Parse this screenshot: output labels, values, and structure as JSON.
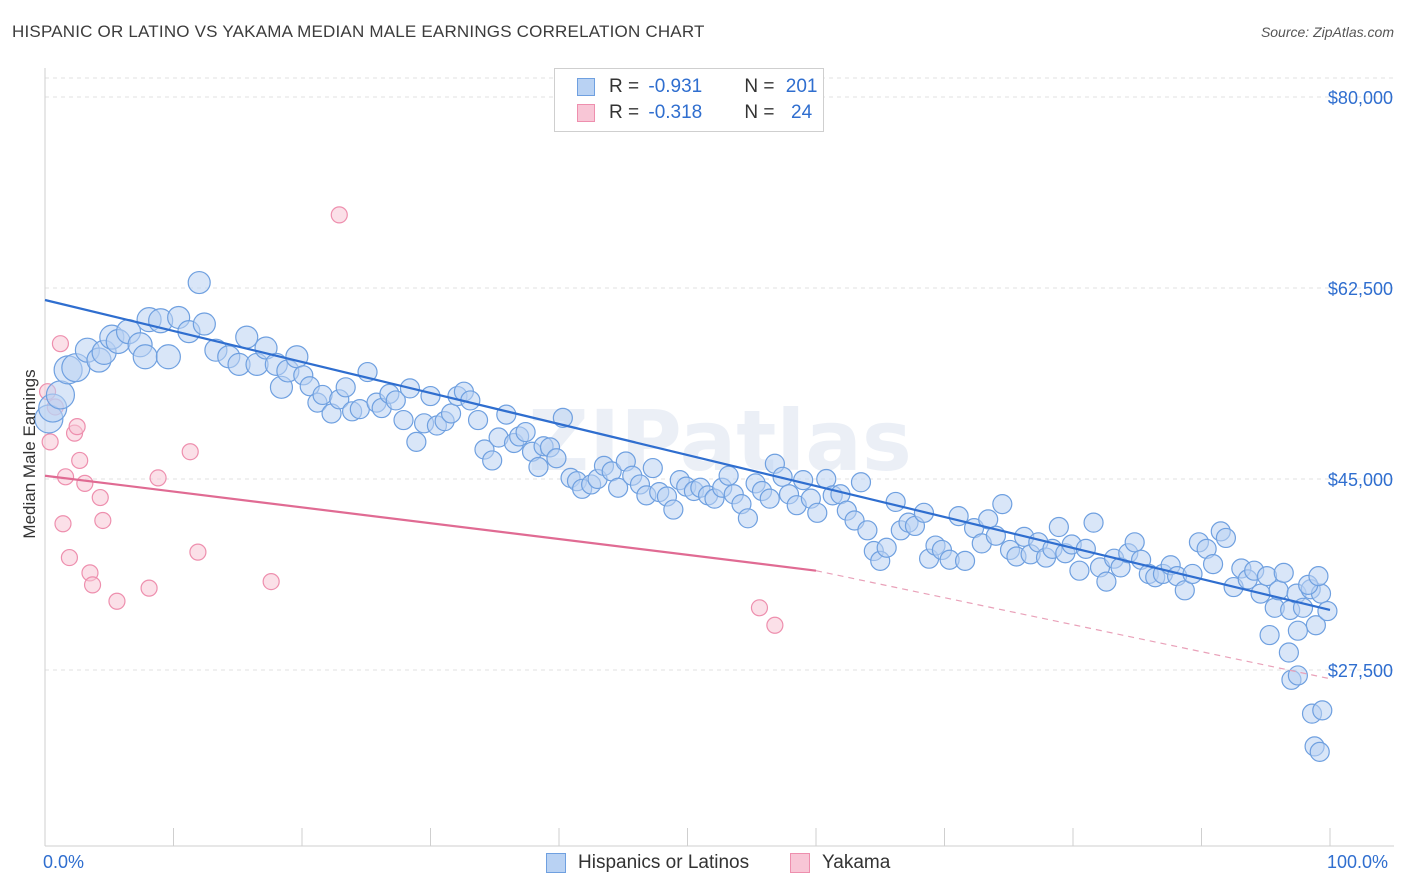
{
  "title": "HISPANIC OR LATINO VS YAKAMA MEDIAN MALE EARNINGS CORRELATION CHART",
  "source": "Source: ZipAtlas.com",
  "watermark": "ZIPatlas",
  "legend": {
    "rows": [
      {
        "r_label": "R = ",
        "r_value": "-0.931",
        "n_label": "N = ",
        "n_value": "201",
        "color": "#6fa0e0",
        "fill": "#b9d2f3"
      },
      {
        "r_label": "R = ",
        "r_value": "-0.318",
        "n_label": "N = ",
        "n_value": " 24",
        "color": "#ee8fae",
        "fill": "#f8c6d6"
      }
    ]
  },
  "bottom_legend": [
    {
      "label": "Hispanics or Latinos",
      "color": "#6fa0e0",
      "fill": "#b9d2f3"
    },
    {
      "label": "Yakama",
      "color": "#ee8fae",
      "fill": "#f8c6d6"
    }
  ],
  "axes": {
    "x_min_label": "0.0%",
    "x_max_label": "100.0%",
    "y_title": "Median Male Earnings",
    "y_ticks": [
      "$80,000",
      "$62,500",
      "$45,000",
      "$27,500"
    ]
  },
  "chart_data": {
    "type": "scatter",
    "title": "HISPANIC OR LATINO VS YAKAMA MEDIAN MALE EARNINGS CORRELATION CHART",
    "xlabel": "",
    "ylabel": "Median Male Earnings",
    "xlim": [
      0,
      100
    ],
    "ylim": [
      12500,
      83000
    ],
    "y_ticks": [
      27500,
      45000,
      62500,
      80000
    ],
    "x_ticks_labeled": [
      0,
      100
    ],
    "grid": true,
    "legend_position": "top-center",
    "series": [
      {
        "name": "Hispanics or Latinos",
        "color": "#5b8fd9",
        "trend": {
          "x0": 0,
          "y0": 61400,
          "x1": 100,
          "y1": 33000
        },
        "points": [
          [
            0.3,
            50500
          ],
          [
            0.6,
            51500
          ],
          [
            1.2,
            52700
          ],
          [
            1.8,
            55000
          ],
          [
            2.4,
            55200
          ],
          [
            3.3,
            56800
          ],
          [
            4.2,
            55900
          ],
          [
            4.6,
            56600
          ],
          [
            5.2,
            58000
          ],
          [
            5.7,
            57600
          ],
          [
            6.5,
            58500
          ],
          [
            7.4,
            57300
          ],
          [
            7.8,
            56200
          ],
          [
            8.1,
            59600
          ],
          [
            9.0,
            59500
          ],
          [
            9.6,
            56200
          ],
          [
            10.4,
            59800
          ],
          [
            11.2,
            58500
          ],
          [
            12.4,
            59200
          ],
          [
            13.3,
            56800
          ],
          [
            14.3,
            56200
          ],
          [
            15.1,
            55500
          ],
          [
            15.7,
            58000
          ],
          [
            16.5,
            55500
          ],
          [
            17.2,
            57000
          ],
          [
            18.0,
            55500
          ],
          [
            18.4,
            53400
          ],
          [
            18.9,
            54900
          ],
          [
            19.6,
            56200
          ],
          [
            20.1,
            54500
          ],
          [
            20.6,
            53500
          ],
          [
            21.2,
            52000
          ],
          [
            21.6,
            52700
          ],
          [
            22.3,
            51000
          ],
          [
            22.9,
            52300
          ],
          [
            23.4,
            53400
          ],
          [
            23.9,
            51200
          ],
          [
            24.5,
            51400
          ],
          [
            25.1,
            54800
          ],
          [
            25.8,
            52000
          ],
          [
            26.2,
            51500
          ],
          [
            26.8,
            52800
          ],
          [
            27.3,
            52200
          ],
          [
            27.9,
            50400
          ],
          [
            28.4,
            53300
          ],
          [
            28.9,
            48400
          ],
          [
            29.5,
            50100
          ],
          [
            30.0,
            52600
          ],
          [
            30.5,
            49900
          ],
          [
            31.1,
            50300
          ],
          [
            31.6,
            51000
          ],
          [
            32.1,
            52600
          ],
          [
            32.6,
            53000
          ],
          [
            33.1,
            52200
          ],
          [
            33.7,
            50400
          ],
          [
            34.2,
            47700
          ],
          [
            34.8,
            46700
          ],
          [
            35.3,
            48800
          ],
          [
            35.9,
            50900
          ],
          [
            36.5,
            48300
          ],
          [
            36.9,
            48900
          ],
          [
            37.4,
            49300
          ],
          [
            37.9,
            47500
          ],
          [
            38.4,
            46100
          ],
          [
            38.8,
            48000
          ],
          [
            39.3,
            47900
          ],
          [
            39.8,
            46900
          ],
          [
            40.3,
            50600
          ],
          [
            40.9,
            45100
          ],
          [
            41.4,
            44800
          ],
          [
            41.8,
            44100
          ],
          [
            42.5,
            44500
          ],
          [
            43.0,
            45000
          ],
          [
            43.5,
            46200
          ],
          [
            44.1,
            45700
          ],
          [
            44.6,
            44200
          ],
          [
            45.2,
            46600
          ],
          [
            45.7,
            45300
          ],
          [
            46.3,
            44500
          ],
          [
            46.8,
            43500
          ],
          [
            47.3,
            46000
          ],
          [
            47.8,
            43800
          ],
          [
            48.4,
            43400
          ],
          [
            48.9,
            42200
          ],
          [
            49.4,
            44900
          ],
          [
            49.9,
            44300
          ],
          [
            50.5,
            43900
          ],
          [
            51.0,
            44200
          ],
          [
            51.6,
            43500
          ],
          [
            52.1,
            43200
          ],
          [
            52.7,
            44200
          ],
          [
            53.2,
            45300
          ],
          [
            53.6,
            43600
          ],
          [
            54.2,
            42700
          ],
          [
            54.7,
            41400
          ],
          [
            55.3,
            44600
          ],
          [
            55.8,
            43900
          ],
          [
            56.4,
            43200
          ],
          [
            56.8,
            46400
          ],
          [
            57.4,
            45200
          ],
          [
            57.9,
            43600
          ],
          [
            58.5,
            42600
          ],
          [
            59.0,
            44900
          ],
          [
            59.6,
            43200
          ],
          [
            60.1,
            41900
          ],
          [
            60.8,
            45000
          ],
          [
            61.3,
            43500
          ],
          [
            61.9,
            43600
          ],
          [
            62.4,
            42100
          ],
          [
            63.0,
            41200
          ],
          [
            63.5,
            44700
          ],
          [
            64.0,
            40300
          ],
          [
            64.5,
            38400
          ],
          [
            65.0,
            37500
          ],
          [
            65.5,
            38700
          ],
          [
            66.2,
            42900
          ],
          [
            66.6,
            40300
          ],
          [
            67.2,
            41000
          ],
          [
            67.7,
            40700
          ],
          [
            68.4,
            41900
          ],
          [
            68.8,
            37700
          ],
          [
            69.3,
            38900
          ],
          [
            69.8,
            38500
          ],
          [
            70.4,
            37600
          ],
          [
            71.1,
            41600
          ],
          [
            71.6,
            37500
          ],
          [
            72.3,
            40500
          ],
          [
            72.9,
            39100
          ],
          [
            73.4,
            41300
          ],
          [
            74.0,
            39800
          ],
          [
            74.5,
            42700
          ],
          [
            75.1,
            38500
          ],
          [
            75.6,
            37900
          ],
          [
            76.2,
            39700
          ],
          [
            76.7,
            38100
          ],
          [
            77.3,
            39200
          ],
          [
            77.9,
            37800
          ],
          [
            78.4,
            38600
          ],
          [
            78.9,
            40600
          ],
          [
            79.4,
            38200
          ],
          [
            79.9,
            39000
          ],
          [
            80.5,
            36600
          ],
          [
            81.0,
            38600
          ],
          [
            81.6,
            41000
          ],
          [
            82.1,
            36900
          ],
          [
            82.6,
            35600
          ],
          [
            83.2,
            37700
          ],
          [
            83.7,
            36900
          ],
          [
            84.3,
            38200
          ],
          [
            84.8,
            39200
          ],
          [
            85.3,
            37600
          ],
          [
            85.9,
            36300
          ],
          [
            86.4,
            36000
          ],
          [
            87.0,
            36300
          ],
          [
            87.6,
            37100
          ],
          [
            88.1,
            36100
          ],
          [
            88.7,
            34800
          ],
          [
            89.3,
            36300
          ],
          [
            89.8,
            39200
          ],
          [
            90.4,
            38600
          ],
          [
            90.9,
            37200
          ],
          [
            91.5,
            40200
          ],
          [
            91.9,
            39600
          ],
          [
            92.5,
            35100
          ],
          [
            93.1,
            36800
          ],
          [
            93.6,
            35800
          ],
          [
            94.1,
            36600
          ],
          [
            94.6,
            34500
          ],
          [
            95.1,
            36100
          ],
          [
            95.7,
            33200
          ],
          [
            96.0,
            34800
          ],
          [
            96.4,
            36400
          ],
          [
            96.9,
            33000
          ],
          [
            97.4,
            34500
          ],
          [
            97.9,
            33200
          ],
          [
            98.5,
            34900
          ],
          [
            98.9,
            31600
          ],
          [
            99.3,
            34500
          ],
          [
            99.8,
            32900
          ],
          [
            95.3,
            30700
          ],
          [
            96.8,
            29100
          ],
          [
            97.5,
            31100
          ],
          [
            98.3,
            35300
          ],
          [
            99.1,
            36100
          ],
          [
            97.0,
            26600
          ],
          [
            97.5,
            27000
          ],
          [
            98.6,
            23500
          ],
          [
            99.4,
            23800
          ],
          [
            98.8,
            20500
          ],
          [
            99.2,
            20000
          ],
          [
            12.0,
            63000
          ]
        ]
      },
      {
        "name": "Yakama",
        "color": "#e97fa3",
        "trend": {
          "x0": 0,
          "y0": 45300,
          "x1": 60,
          "y1": 36600,
          "dashed_to": {
            "x": 100,
            "y": 26700
          }
        },
        "points": [
          [
            0.2,
            53000
          ],
          [
            0.4,
            48400
          ],
          [
            0.8,
            51600
          ],
          [
            1.2,
            57400
          ],
          [
            1.4,
            40900
          ],
          [
            1.6,
            45200
          ],
          [
            1.9,
            37800
          ],
          [
            2.3,
            49200
          ],
          [
            2.5,
            49800
          ],
          [
            2.7,
            46700
          ],
          [
            3.1,
            44600
          ],
          [
            3.5,
            36400
          ],
          [
            3.7,
            35300
          ],
          [
            4.3,
            43300
          ],
          [
            4.5,
            41200
          ],
          [
            5.6,
            33800
          ],
          [
            8.1,
            35000
          ],
          [
            8.8,
            45100
          ],
          [
            11.3,
            47500
          ],
          [
            11.9,
            38300
          ],
          [
            17.6,
            35600
          ],
          [
            22.9,
            69200
          ],
          [
            55.6,
            33200
          ],
          [
            56.8,
            31600
          ]
        ]
      }
    ]
  }
}
